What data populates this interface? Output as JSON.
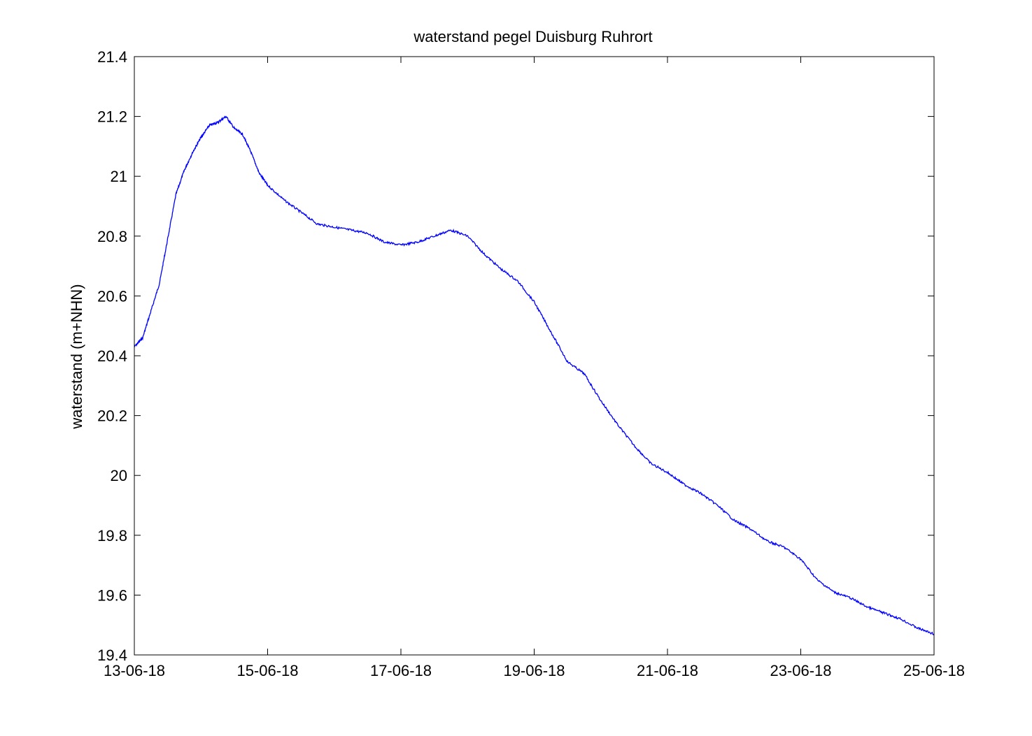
{
  "chart_data": {
    "type": "line",
    "title": "waterstand pegel Duisburg Ruhrort",
    "xlabel": "",
    "ylabel": "waterstand (m+NHN)",
    "x_ticks": [
      "13-06-18",
      "15-06-18",
      "17-06-18",
      "19-06-18",
      "21-06-18",
      "23-06-18",
      "25-06-18"
    ],
    "y_ticks": [
      "19.4",
      "19.6",
      "19.8",
      "20",
      "20.2",
      "20.4",
      "20.6",
      "20.8",
      "21",
      "21.2",
      "21.4"
    ],
    "xlim": [
      "13-06-18",
      "25-06-18"
    ],
    "ylim": [
      19.4,
      21.4
    ],
    "grid": false,
    "line_color": "#0000ff",
    "series": [
      {
        "x": [
          "13-06-18 00:00",
          "13-06-18 03:00",
          "13-06-18 06:00",
          "13-06-18 09:00",
          "13-06-18 12:00",
          "13-06-18 15:00",
          "13-06-18 18:00",
          "13-06-18 21:00",
          "14-06-18 00:00",
          "14-06-18 03:00",
          "14-06-18 06:00",
          "14-06-18 09:00",
          "14-06-18 12:00",
          "14-06-18 15:00",
          "14-06-18 18:00",
          "14-06-18 21:00",
          "15-06-18 00:00",
          "15-06-18 06:00",
          "15-06-18 12:00",
          "15-06-18 18:00",
          "16-06-18 00:00",
          "16-06-18 06:00",
          "16-06-18 12:00",
          "16-06-18 18:00",
          "17-06-18 00:00",
          "17-06-18 06:00",
          "17-06-18 12:00",
          "17-06-18 18:00",
          "18-06-18 00:00",
          "18-06-18 06:00",
          "18-06-18 12:00",
          "18-06-18 18:00",
          "19-06-18 00:00",
          "19-06-18 06:00",
          "19-06-18 12:00",
          "19-06-18 18:00",
          "20-06-18 00:00",
          "20-06-18 06:00",
          "20-06-18 12:00",
          "20-06-18 18:00",
          "21-06-18 00:00",
          "21-06-18 06:00",
          "21-06-18 12:00",
          "21-06-18 18:00",
          "22-06-18 00:00",
          "22-06-18 06:00",
          "22-06-18 12:00",
          "22-06-18 18:00",
          "23-06-18 00:00",
          "23-06-18 06:00",
          "23-06-18 12:00",
          "23-06-18 18:00",
          "24-06-18 00:00",
          "24-06-18 06:00",
          "24-06-18 12:00",
          "24-06-18 18:00",
          "25-06-18 00:00"
        ],
        "y": [
          20.43,
          20.46,
          20.55,
          20.64,
          20.79,
          20.94,
          21.02,
          21.08,
          21.13,
          21.17,
          21.18,
          21.2,
          21.16,
          21.14,
          21.08,
          21.01,
          20.97,
          20.92,
          20.88,
          20.84,
          20.83,
          20.82,
          20.81,
          20.78,
          20.77,
          20.78,
          20.8,
          20.82,
          20.8,
          20.74,
          20.69,
          20.65,
          20.58,
          20.48,
          20.38,
          20.34,
          20.25,
          20.17,
          20.1,
          20.04,
          20.01,
          19.97,
          19.94,
          19.9,
          19.85,
          19.82,
          19.78,
          19.76,
          19.72,
          19.65,
          19.61,
          19.59,
          19.56,
          19.54,
          19.52,
          19.49,
          19.47
        ]
      }
    ]
  }
}
